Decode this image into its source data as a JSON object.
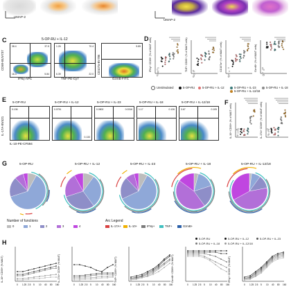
{
  "panel_a": {
    "axis_label": "UMAP-2"
  },
  "panel_b": {
    "axis_label": "UMAP-2"
  },
  "panel_c": {
    "letter": "C",
    "title": "5-OP-RU + IL-12",
    "yaxis": "CD69-BUV737",
    "plots": [
      {
        "xaxis": "IFNγ-APC",
        "q_tl": "38.4",
        "q_tr": "37.5",
        "q_bl": "16.3",
        "q_br": "5.84"
      },
      {
        "xaxis": "TNF-PE-Cy7",
        "q_tl": "1.26",
        "q_tr": "70.4",
        "q_bl": "6.39",
        "q_br": "22.0"
      },
      {
        "xaxis": "GzmB-FITC",
        "yaxis": "CD107a-BV786",
        "q_tr": "5.85"
      }
    ]
  },
  "panel_d": {
    "letter": "D",
    "ylabels": [
      "IFNγ+ CD69+ (% of MAIT cells)",
      "TNF+ CD69+ (% of MAIT cells)",
      "CD107a+ (% of MAIT cells)",
      "GzmB+ (% of MAIT cells)"
    ],
    "legend": [
      "Unstimulated",
      "5-OP-RU",
      "5-OP-RU + IL-12",
      "5-OP-RU + IL-23",
      "5-OP-RU + IL-18",
      "5-OP-RU + IL-12/18"
    ]
  },
  "panel_e": {
    "letter": "E",
    "yaxis": "IL-17A-BV421",
    "xaxis": "IL-10-PE-CF594",
    "plots": [
      {
        "title": "5-OP-RU",
        "q_tl": "0.136",
        "q_tr": "",
        "q_bl": "",
        "q_br": ""
      },
      {
        "title": "5-OP-RU + IL-12",
        "q_tl": "0.0751",
        "q_tr": "",
        "q_bl": "",
        "q_br": "0.133"
      },
      {
        "title": "5-OP-RU + IL-23",
        "q_tl": "0.0802",
        "q_tr": "0.0316",
        "q_bl": "",
        "q_br": ""
      },
      {
        "title": "5-OP-RU + IL-18",
        "q_tl": "1.17",
        "q_tr": "0.126",
        "q_bl": "",
        "q_br": ""
      },
      {
        "title": "5-OP-RU + IL-12/18",
        "q_tl": "3.67",
        "q_tr": "0.105",
        "q_bl": "",
        "q_br": ""
      }
    ]
  },
  "panel_f": {
    "letter": "F",
    "ylabels": [
      "IL-10+ CD69+ (% of MAIT cells)",
      "IL-17A+ CD69+ (% of MAIT cells)"
    ]
  },
  "panel_g": {
    "letter": "G",
    "titles": [
      "5-OP-RU",
      "5-OP-RU + IL-12",
      "5-OP-RU + IL-23",
      "5-OP-RU + IL-18",
      "5-OP-RU + IL-12/18"
    ],
    "functions_title": "Number of functions",
    "functions": [
      {
        "label": "0",
        "color": "#bdbdbd"
      },
      {
        "label": "1",
        "color": "#8fa8d8"
      },
      {
        "label": "2",
        "color": "#8e8ec8"
      },
      {
        "label": "3",
        "color": "#b26fd8"
      },
      {
        "label": "4",
        "color": "#c046e0"
      }
    ],
    "arc_title": "Arc Legend",
    "arcs": [
      {
        "label": "IL-17A+",
        "color": "#d94040"
      },
      {
        "label": "IL-10+",
        "color": "#f0b000"
      },
      {
        "label": "IFNγ+",
        "color": "#7a7a7a"
      },
      {
        "label": "TNF+",
        "color": "#40c0c0"
      },
      {
        "label": "GzmB+",
        "color": "#2a5fa8"
      }
    ]
  },
  "panel_h": {
    "letter": "H",
    "ylabels": [
      "IL-10+ CD69+ (% MAIT)",
      "IL-17A+ CD69+ (% MAIT)",
      "TNF+ CD69+ (% MAIT)",
      "GzmB+ CD69+ (% MAIT)",
      "IFNγ+ CD69+ (% MAIT)"
    ],
    "xticks": [
      "0",
      "1.25",
      "2.5",
      "5",
      "10",
      "40",
      "80",
      "160"
    ],
    "legend": [
      "5-OP-RU",
      "5-OP-RU + IL-12",
      "5-OP-RU + IL-23",
      "5-OP-RU + IL-18",
      "5-OP-RU + IL-12/18"
    ]
  }
}
